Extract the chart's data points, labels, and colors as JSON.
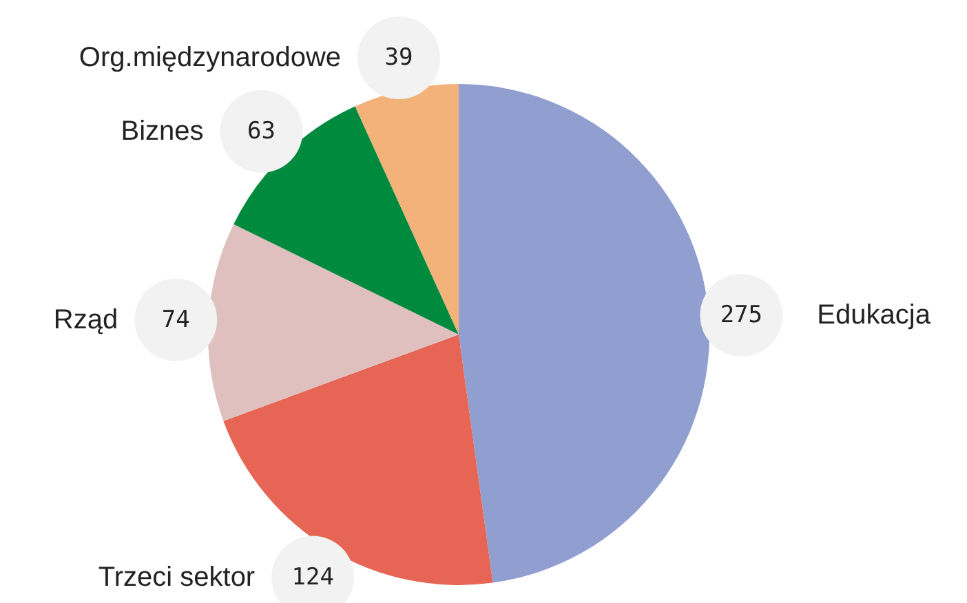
{
  "chart_data": {
    "type": "pie",
    "categories": [
      "Edukacja",
      "Trzeci sektor",
      "Rząd",
      "Biznes",
      "Org.międzynarodowe"
    ],
    "values": [
      275,
      124,
      74,
      63,
      39
    ],
    "colors": [
      "#919fd0",
      "#e66554",
      "#e0bfbf",
      "#008a3e",
      "#f2b27a"
    ],
    "data_labels": true,
    "legend": false
  }
}
